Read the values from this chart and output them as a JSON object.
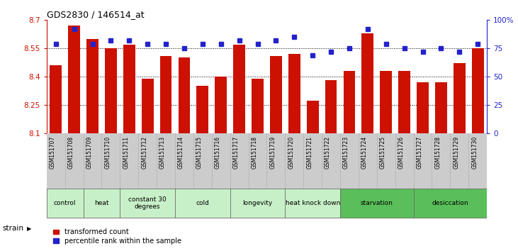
{
  "title": "GDS2830 / 146514_at",
  "samples": [
    "GSM151707",
    "GSM151708",
    "GSM151709",
    "GSM151710",
    "GSM151711",
    "GSM151712",
    "GSM151713",
    "GSM151714",
    "GSM151715",
    "GSM151716",
    "GSM151717",
    "GSM151718",
    "GSM151719",
    "GSM151720",
    "GSM151721",
    "GSM151722",
    "GSM151723",
    "GSM151724",
    "GSM151725",
    "GSM151726",
    "GSM151727",
    "GSM151728",
    "GSM151729",
    "GSM151730"
  ],
  "bar_values": [
    8.46,
    8.67,
    8.6,
    8.55,
    8.57,
    8.39,
    8.51,
    8.5,
    8.35,
    8.4,
    8.57,
    8.39,
    8.51,
    8.52,
    8.27,
    8.38,
    8.43,
    8.63,
    8.43,
    8.43,
    8.37,
    8.37,
    8.47,
    8.55
  ],
  "percentile_values": [
    79,
    92,
    79,
    82,
    82,
    79,
    79,
    75,
    79,
    79,
    82,
    79,
    82,
    85,
    69,
    72,
    75,
    92,
    79,
    75,
    72,
    75,
    72,
    79
  ],
  "groups": [
    {
      "label": "control",
      "start": 0,
      "end": 2,
      "color": "#c8f0c8"
    },
    {
      "label": "heat",
      "start": 2,
      "end": 4,
      "color": "#c8f0c8"
    },
    {
      "label": "constant 30\ndegrees",
      "start": 4,
      "end": 7,
      "color": "#c8f0c8"
    },
    {
      "label": "cold",
      "start": 7,
      "end": 10,
      "color": "#c8f0c8"
    },
    {
      "label": "longevity",
      "start": 10,
      "end": 13,
      "color": "#c8f0c8"
    },
    {
      "label": "heat knock down",
      "start": 13,
      "end": 16,
      "color": "#c8f0c8"
    },
    {
      "label": "starvation",
      "start": 16,
      "end": 20,
      "color": "#5abf5a"
    },
    {
      "label": "desiccation",
      "start": 20,
      "end": 24,
      "color": "#5abf5a"
    }
  ],
  "ylim_left": [
    8.1,
    8.7
  ],
  "ylim_right": [
    0,
    100
  ],
  "yticks_left": [
    8.1,
    8.25,
    8.4,
    8.55,
    8.7
  ],
  "yticks_right": [
    0,
    25,
    50,
    75,
    100
  ],
  "bar_color": "#cc1100",
  "dot_color": "#2222cc",
  "background_color": "#ffffff",
  "tick_area_color": "#cccccc",
  "group_area_color": "#888888"
}
